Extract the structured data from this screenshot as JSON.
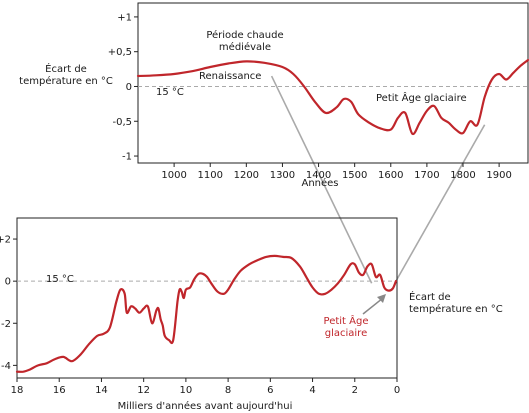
{
  "chart_data": [
    {
      "type": "line",
      "xlabel": "Années",
      "ylabel_line1": "Écart de",
      "ylabel_line2": "température en °C",
      "xlim": [
        900,
        1980
      ],
      "ylim": [
        -1.1,
        1.2
      ],
      "xticks": [
        1000,
        1100,
        1200,
        1300,
        1400,
        1500,
        1600,
        1700,
        1800,
        1900
      ],
      "yticks": [
        {
          "v": 1,
          "t": "+1"
        },
        {
          "v": 0.5,
          "t": "+0,5"
        },
        {
          "v": 0,
          "t": "0"
        },
        {
          "v": -0.5,
          "t": "-0,5"
        },
        {
          "v": -1,
          "t": "-1"
        }
      ],
      "baseline_label": "15 °C",
      "annotations": {
        "warm_line1": "Période chaude",
        "warm_line2": "médiévale",
        "renaissance": "Renaissance",
        "little_ice_age": "Petit Âge glaciaire"
      },
      "color": "#c0262b",
      "series": [
        {
          "x": [
            900,
            950,
            1000,
            1050,
            1100,
            1150,
            1200,
            1250,
            1300,
            1330,
            1360,
            1390,
            1420,
            1450,
            1470,
            1490,
            1510,
            1540,
            1570,
            1600,
            1620,
            1640,
            1660,
            1680,
            1700,
            1720,
            1740,
            1760,
            1780,
            1800,
            1820,
            1840,
            1860,
            1880,
            1900,
            1920,
            1940,
            1960,
            1980
          ],
          "y": [
            0.15,
            0.16,
            0.18,
            0.22,
            0.28,
            0.33,
            0.36,
            0.34,
            0.28,
            0.18,
            0.0,
            -0.22,
            -0.38,
            -0.3,
            -0.18,
            -0.22,
            -0.4,
            -0.52,
            -0.6,
            -0.62,
            -0.45,
            -0.38,
            -0.68,
            -0.52,
            -0.35,
            -0.28,
            -0.45,
            -0.52,
            -0.62,
            -0.67,
            -0.5,
            -0.55,
            -0.15,
            0.1,
            0.18,
            0.1,
            0.2,
            0.3,
            0.38
          ]
        }
      ]
    },
    {
      "type": "line",
      "xlabel": "Milliers d'années avant aujourd'hui",
      "ylabel_line1": "Écart de",
      "ylabel_line2": "température en °C",
      "xlim": [
        18,
        0
      ],
      "ylim": [
        -4.6,
        3.0
      ],
      "xticks": [
        18,
        16,
        14,
        12,
        10,
        8,
        6,
        4,
        2,
        0
      ],
      "yticks": [
        {
          "v": 2,
          "t": "+2"
        },
        {
          "v": 0,
          "t": "0"
        },
        {
          "v": -2,
          "t": "-2"
        },
        {
          "v": -4,
          "t": "-4"
        }
      ],
      "baseline_label": "15 °C",
      "annotations": {
        "lia_line1": "Petit Âge",
        "lia_line2": "glaciaire"
      },
      "color": "#c0262b",
      "series": [
        {
          "x": [
            18,
            17.7,
            17.4,
            17.0,
            16.6,
            16.2,
            15.8,
            15.4,
            15.0,
            14.6,
            14.2,
            13.9,
            13.6,
            13.3,
            13.1,
            12.9,
            12.8,
            12.6,
            12.4,
            12.2,
            12.0,
            11.8,
            11.6,
            11.4,
            11.3,
            11.2,
            11.1,
            11.0,
            10.8,
            10.6,
            10.4,
            10.3,
            10.2,
            10.1,
            10.0,
            9.8,
            9.6,
            9.4,
            9.2,
            9.0,
            8.8,
            8.5,
            8.2,
            8.0,
            7.7,
            7.4,
            7.0,
            6.6,
            6.2,
            5.8,
            5.4,
            5.0,
            4.6,
            4.3,
            4.0,
            3.7,
            3.4,
            3.1,
            2.8,
            2.5,
            2.2,
            2.0,
            1.8,
            1.6,
            1.4,
            1.2,
            1.0,
            0.8,
            0.6,
            0.4,
            0.2,
            0.05
          ],
          "y": [
            -4.3,
            -4.3,
            -4.2,
            -4.0,
            -3.9,
            -3.7,
            -3.6,
            -3.8,
            -3.5,
            -3.0,
            -2.6,
            -2.5,
            -2.2,
            -1.0,
            -0.4,
            -0.6,
            -1.5,
            -1.2,
            -1.3,
            -1.5,
            -1.3,
            -1.2,
            -2.0,
            -1.4,
            -1.3,
            -1.8,
            -2.1,
            -2.6,
            -2.8,
            -2.8,
            -1.0,
            -0.4,
            -0.5,
            -0.8,
            -0.4,
            -0.3,
            0.1,
            0.35,
            0.35,
            0.2,
            -0.1,
            -0.5,
            -0.6,
            -0.4,
            0.1,
            0.5,
            0.8,
            1.0,
            1.15,
            1.2,
            1.15,
            1.1,
            0.7,
            0.2,
            -0.3,
            -0.6,
            -0.6,
            -0.4,
            -0.1,
            0.3,
            0.8,
            0.8,
            0.4,
            0.3,
            0.7,
            0.8,
            0.2,
            0.3,
            -0.3,
            -0.45,
            -0.35,
            0.0
          ]
        }
      ]
    }
  ],
  "connector_color": "#aaaaaa",
  "arrow_color": "#888888"
}
